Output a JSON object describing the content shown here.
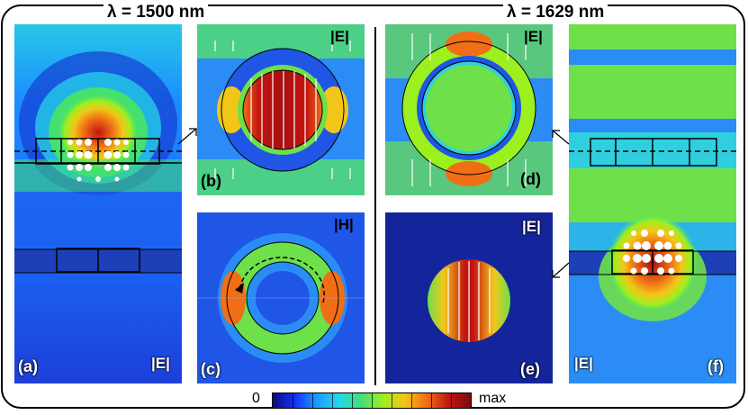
{
  "headers": {
    "left_wavelength": "λ = 1500 nm",
    "right_wavelength": "λ = 1629 nm"
  },
  "panels": {
    "a": {
      "label": "(a)",
      "field": "|E|"
    },
    "b": {
      "label": "(b)",
      "field": "|E|"
    },
    "c": {
      "label": "(c)",
      "field": "|H|"
    },
    "d": {
      "label": "(d)",
      "field": "|E|"
    },
    "e": {
      "label": "(e)",
      "field": "|E|"
    },
    "f": {
      "label": "(f)",
      "field": "|E|"
    }
  },
  "colorbar": {
    "min_label": "0",
    "max_label": "max",
    "colors": [
      "#0a0a7a",
      "#1530ff",
      "#1a9cff",
      "#22d8ee",
      "#3fe07a",
      "#9cf01e",
      "#f2c619",
      "#f06e15",
      "#c21512",
      "#7a0d0d"
    ]
  }
}
